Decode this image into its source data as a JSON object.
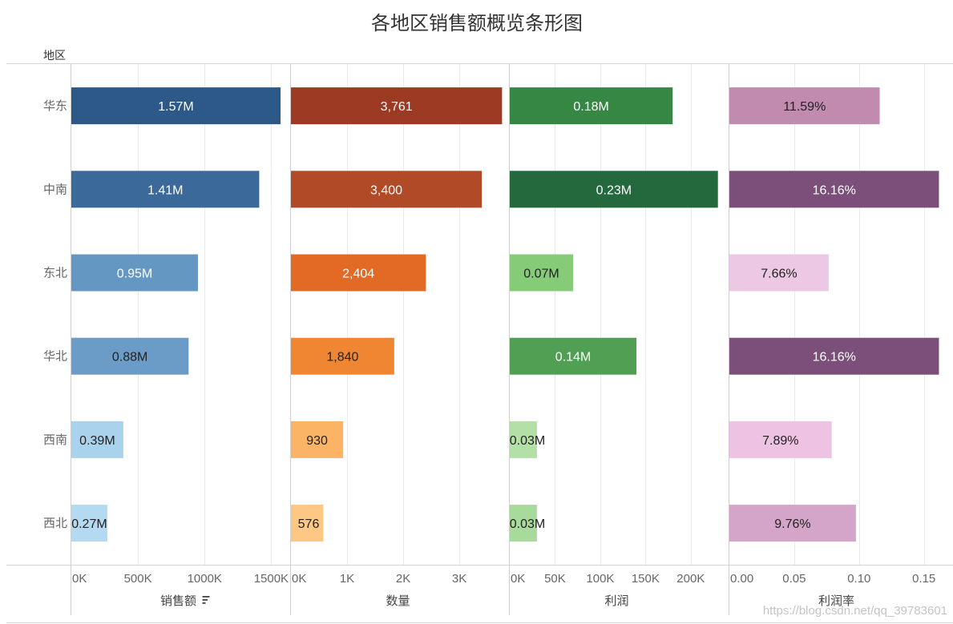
{
  "title": "各地区销售额概览条形图",
  "row_header": "地区",
  "sort_icon": "sort-descending-icon",
  "watermark": "https://blog.csdn.net/qq_39783601",
  "chart_data": {
    "type": "bar",
    "orientation": "horizontal",
    "categories": [
      "华东",
      "中南",
      "东北",
      "华北",
      "西南",
      "西北"
    ],
    "grid": true,
    "panels": [
      {
        "name": "销售额",
        "axis_title": "销售额",
        "sorted": true,
        "values": [
          1570000,
          1410000,
          950000,
          880000,
          390000,
          270000
        ],
        "labels": [
          "1.57M",
          "1.41M",
          "0.95M",
          "0.88M",
          "0.39M",
          "0.27M"
        ],
        "colors": [
          "#2c5987",
          "#3b6a9a",
          "#6497c2",
          "#6b9bc7",
          "#a9d3ec",
          "#b3daf1"
        ],
        "label_colors": [
          "#ffffff",
          "#ffffff",
          "#ffffff",
          "#222222",
          "#222222",
          "#222222"
        ],
        "ticks": [
          0,
          500000,
          1000000,
          1500000
        ],
        "tick_labels": [
          "0K",
          "500K",
          "1000K",
          "1500K"
        ],
        "xlim": [
          0,
          1630000
        ]
      },
      {
        "name": "数量",
        "axis_title": "数量",
        "values": [
          3761,
          3400,
          2404,
          1840,
          930,
          576
        ],
        "labels": [
          "3,761",
          "3,400",
          "2,404",
          "1,840",
          "930",
          "576"
        ],
        "colors": [
          "#9c3a23",
          "#b14a26",
          "#e36a24",
          "#f08632",
          "#fbb466",
          "#fdc784"
        ],
        "label_colors": [
          "#ffffff",
          "#ffffff",
          "#ffffff",
          "#222222",
          "#222222",
          "#222222"
        ],
        "ticks": [
          0,
          1000,
          2000,
          3000
        ],
        "tick_labels": [
          "0K",
          "1K",
          "2K",
          "3K"
        ],
        "xlim": [
          0,
          3870
        ]
      },
      {
        "name": "利润",
        "axis_title": "利润",
        "values": [
          180000,
          230000,
          70000,
          140000,
          30000,
          30000
        ],
        "labels": [
          "0.18M",
          "0.23M",
          "0.07M",
          "0.14M",
          "0.03M",
          "0.03M"
        ],
        "colors": [
          "#368743",
          "#24683d",
          "#86cb77",
          "#509f53",
          "#b3e0a6",
          "#a8da9c"
        ],
        "label_colors": [
          "#ffffff",
          "#ffffff",
          "#222222",
          "#ffffff",
          "#222222",
          "#222222"
        ],
        "ticks": [
          0,
          50000,
          100000,
          150000,
          200000
        ],
        "tick_labels": [
          "0K",
          "50K",
          "100K",
          "150K",
          "200K"
        ],
        "xlim": [
          0,
          240000
        ]
      },
      {
        "name": "利润率",
        "axis_title": "利润率",
        "values": [
          0.1159,
          0.1616,
          0.0766,
          0.1616,
          0.0789,
          0.0976
        ],
        "labels": [
          "11.59%",
          "16.16%",
          "7.66%",
          "16.16%",
          "7.89%",
          "9.76%"
        ],
        "colors": [
          "#c18aaf",
          "#7b4f79",
          "#ecc8e4",
          "#7b4f79",
          "#edc2e2",
          "#d5a5c9"
        ],
        "label_colors": [
          "#222222",
          "#ffffff",
          "#222222",
          "#ffffff",
          "#222222",
          "#222222"
        ],
        "ticks": [
          0,
          0.05,
          0.1,
          0.15
        ],
        "tick_labels": [
          "0.00",
          "0.05",
          "0.10",
          "0.15"
        ],
        "xlim": [
          0,
          0.1675
        ]
      }
    ]
  }
}
